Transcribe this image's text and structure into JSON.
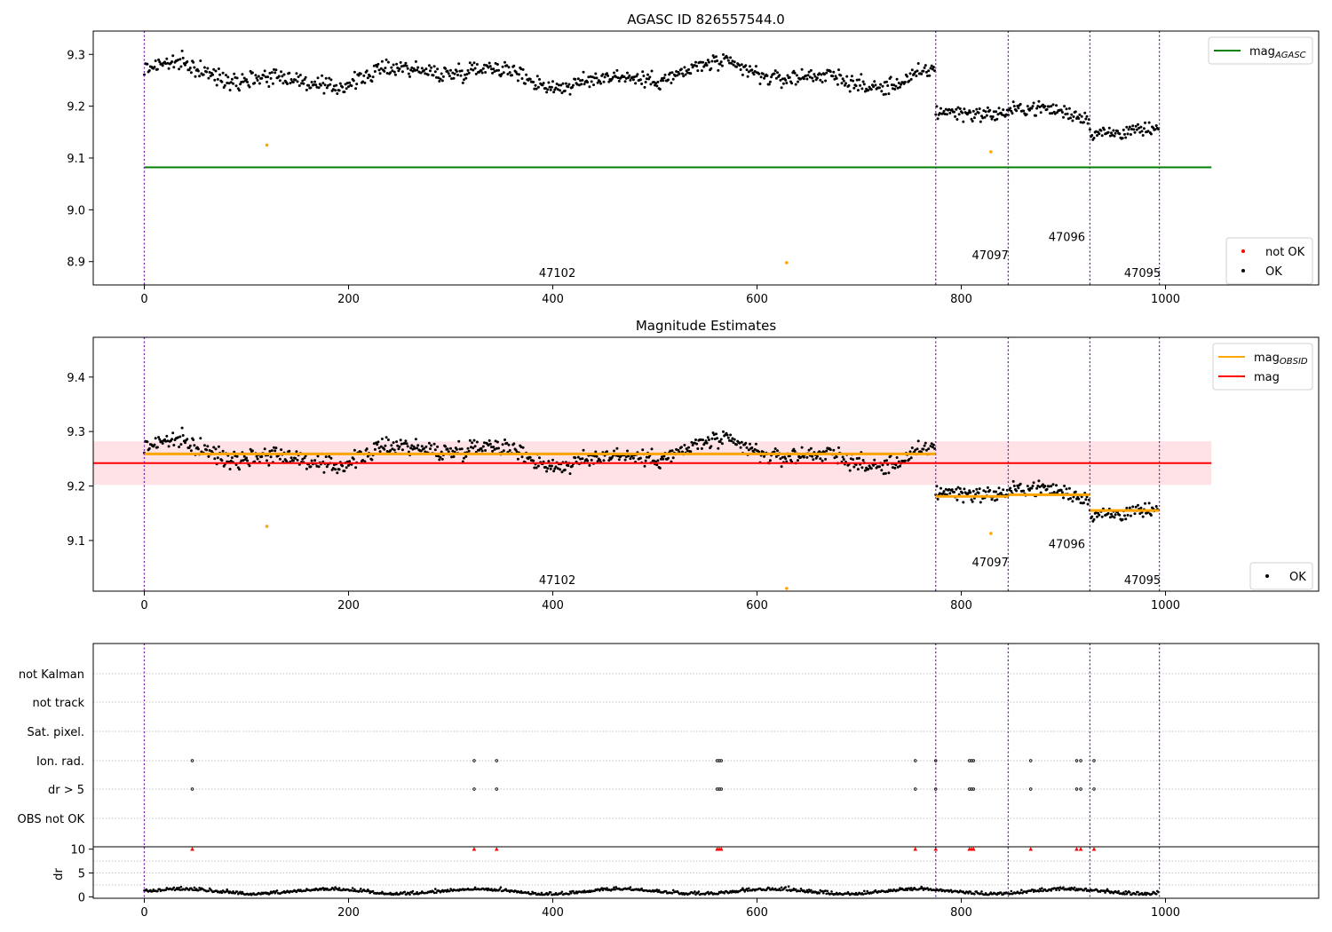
{
  "chart_data": [
    {
      "type": "scatter",
      "title": "AGASC ID 826557544.0",
      "xlim": [
        -50,
        1150
      ],
      "ylim": [
        8.855,
        9.345
      ],
      "xticks": [
        0,
        200,
        400,
        600,
        800,
        1000
      ],
      "yticks": [
        8.9,
        9.0,
        9.1,
        9.2,
        9.3
      ],
      "ytick_labels": [
        "8.9",
        "9.0",
        "9.1",
        "9.2",
        "9.3"
      ],
      "obs_boundaries": [
        0,
        775,
        846,
        926,
        994
      ],
      "obs_labels": [
        {
          "text": "47102",
          "x": 387,
          "y": 8.87
        },
        {
          "text": "47097",
          "x": 811,
          "y": 8.905
        },
        {
          "text": "47096",
          "x": 886,
          "y": 8.94
        },
        {
          "text": "47095",
          "x": 960,
          "y": 8.87
        }
      ],
      "reference_lines": [
        {
          "name": "mag_AGASC",
          "y": 9.082,
          "x_range": [
            0,
            1045
          ],
          "color": "#008000"
        }
      ],
      "segments": [
        {
          "x_range": [
            0,
            775
          ],
          "mean": 9.259,
          "amp": 0.018,
          "noise": 0.008
        },
        {
          "x_range": [
            775,
            846
          ],
          "mean": 9.183,
          "amp": 0.008,
          "noise": 0.007
        },
        {
          "x_range": [
            846,
            926
          ],
          "mean": 9.186,
          "amp": 0.01,
          "noise": 0.007
        },
        {
          "x_range": [
            926,
            994
          ],
          "mean": 9.155,
          "amp": 0.006,
          "noise": 0.007
        }
      ],
      "outliers": [
        {
          "x": 120,
          "y": 9.125
        },
        {
          "x": 829,
          "y": 9.112
        },
        {
          "x": 629,
          "y": 8.898
        }
      ],
      "legend_upper": [
        {
          "label": "mag",
          "subscript": "AGASC",
          "color": "#008000",
          "marker": "line"
        }
      ],
      "legend_lower": [
        {
          "label": "not OK",
          "color": "#ff0000",
          "marker": "dot"
        },
        {
          "label": "OK",
          "color": "#000000",
          "marker": "dot"
        }
      ]
    },
    {
      "type": "scatter",
      "title": "Magnitude Estimates",
      "xlim": [
        -50,
        1150
      ],
      "ylim": [
        9.007,
        9.473
      ],
      "xticks": [
        0,
        200,
        400,
        600,
        800,
        1000
      ],
      "yticks": [
        9.1,
        9.2,
        9.3,
        9.4
      ],
      "ytick_labels": [
        "9.1",
        "9.2",
        "9.3",
        "9.4"
      ],
      "obs_boundaries": [
        0,
        775,
        846,
        926,
        994
      ],
      "obs_labels": [
        {
          "text": "47102",
          "x": 387,
          "y": 9.02
        },
        {
          "text": "47097",
          "x": 811,
          "y": 9.053
        },
        {
          "text": "47096",
          "x": 886,
          "y": 9.086
        },
        {
          "text": "47095",
          "x": 960,
          "y": 9.02
        }
      ],
      "mag_line": {
        "y": 9.242,
        "band": [
          9.202,
          9.282
        ],
        "x_range": [
          0,
          1045
        ],
        "color": "#ff0000"
      },
      "obsid_means": [
        {
          "x_range": [
            0,
            775
          ],
          "y": 9.259
        },
        {
          "x_range": [
            775,
            846
          ],
          "y": 9.181
        },
        {
          "x_range": [
            846,
            926
          ],
          "y": 9.184
        },
        {
          "x_range": [
            926,
            994
          ],
          "y": 9.155
        }
      ],
      "segments": [
        {
          "x_range": [
            0,
            775
          ],
          "mean": 9.259,
          "amp": 0.018,
          "noise": 0.008
        },
        {
          "x_range": [
            775,
            846
          ],
          "mean": 9.183,
          "amp": 0.008,
          "noise": 0.007
        },
        {
          "x_range": [
            846,
            926
          ],
          "mean": 9.186,
          "amp": 0.01,
          "noise": 0.007
        },
        {
          "x_range": [
            926,
            994
          ],
          "mean": 9.155,
          "amp": 0.006,
          "noise": 0.007
        }
      ],
      "outliers": [
        {
          "x": 120,
          "y": 9.126
        },
        {
          "x": 829,
          "y": 9.113
        },
        {
          "x": 629,
          "y": 9.012
        }
      ],
      "legend_upper": [
        {
          "label": "mag",
          "subscript": "OBSID",
          "color": "#ffa500",
          "marker": "line"
        },
        {
          "label": "mag",
          "subscript": "",
          "color": "#ff0000",
          "marker": "line"
        }
      ],
      "legend_lower": [
        {
          "label": "OK",
          "color": "#000000",
          "marker": "dot"
        }
      ]
    },
    {
      "type": "scatter",
      "title": "",
      "xlim": [
        -50,
        1150
      ],
      "xticks": [
        0,
        200,
        400,
        600,
        800,
        1000
      ],
      "obs_boundaries": [
        0,
        775,
        846,
        926,
        994
      ],
      "flag_categories": [
        "not Kalman",
        "not track",
        "Sat. pixel.",
        "Ion. rad.",
        "dr > 5",
        "OBS not OK"
      ],
      "flag_points": {
        "Ion. rad.": [
          47,
          323,
          345,
          561,
          563,
          565,
          755,
          775,
          808,
          810,
          812,
          868,
          913,
          917,
          930
        ],
        "dr > 5": [
          47,
          323,
          345,
          561,
          563,
          565,
          755,
          775,
          808,
          810,
          812,
          868,
          913,
          917,
          930
        ]
      },
      "dr_panel": {
        "ylabel": "dr",
        "ylim": [
          -0.3,
          10.5
        ],
        "yticks": [
          0,
          5,
          10
        ],
        "ytick_labels": [
          "0",
          "5",
          "10"
        ],
        "flagged_x": [
          47,
          323,
          345,
          561,
          563,
          565,
          755,
          775,
          808,
          810,
          812,
          868,
          913,
          917,
          930
        ],
        "flagged_y": 10
      }
    }
  ]
}
